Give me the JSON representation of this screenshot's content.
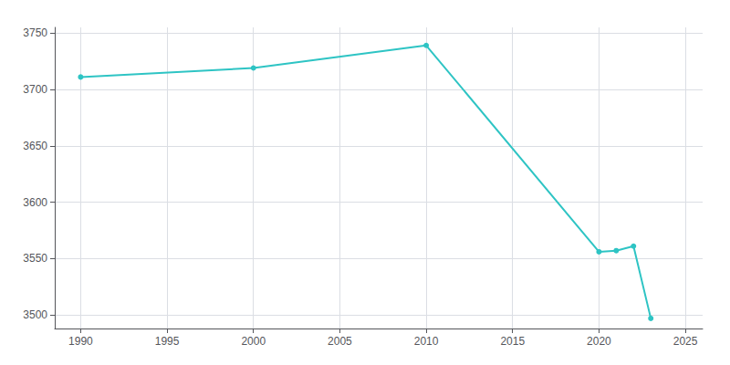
{
  "chart_data": {
    "type": "line",
    "x": [
      1990,
      2000,
      2010,
      2020,
      2021,
      2022,
      2023
    ],
    "values": [
      3711,
      3719,
      3739,
      3556,
      3557,
      3561,
      3497
    ],
    "color": "#2EC4C4",
    "marker": "circle",
    "xlim": [
      1988.5,
      2026
    ],
    "ylim": [
      3488,
      3755
    ],
    "xticks": [
      1990,
      1995,
      2000,
      2005,
      2010,
      2015,
      2020,
      2025
    ],
    "yticks": [
      3500,
      3550,
      3600,
      3650,
      3700,
      3750
    ],
    "grid": true
  }
}
